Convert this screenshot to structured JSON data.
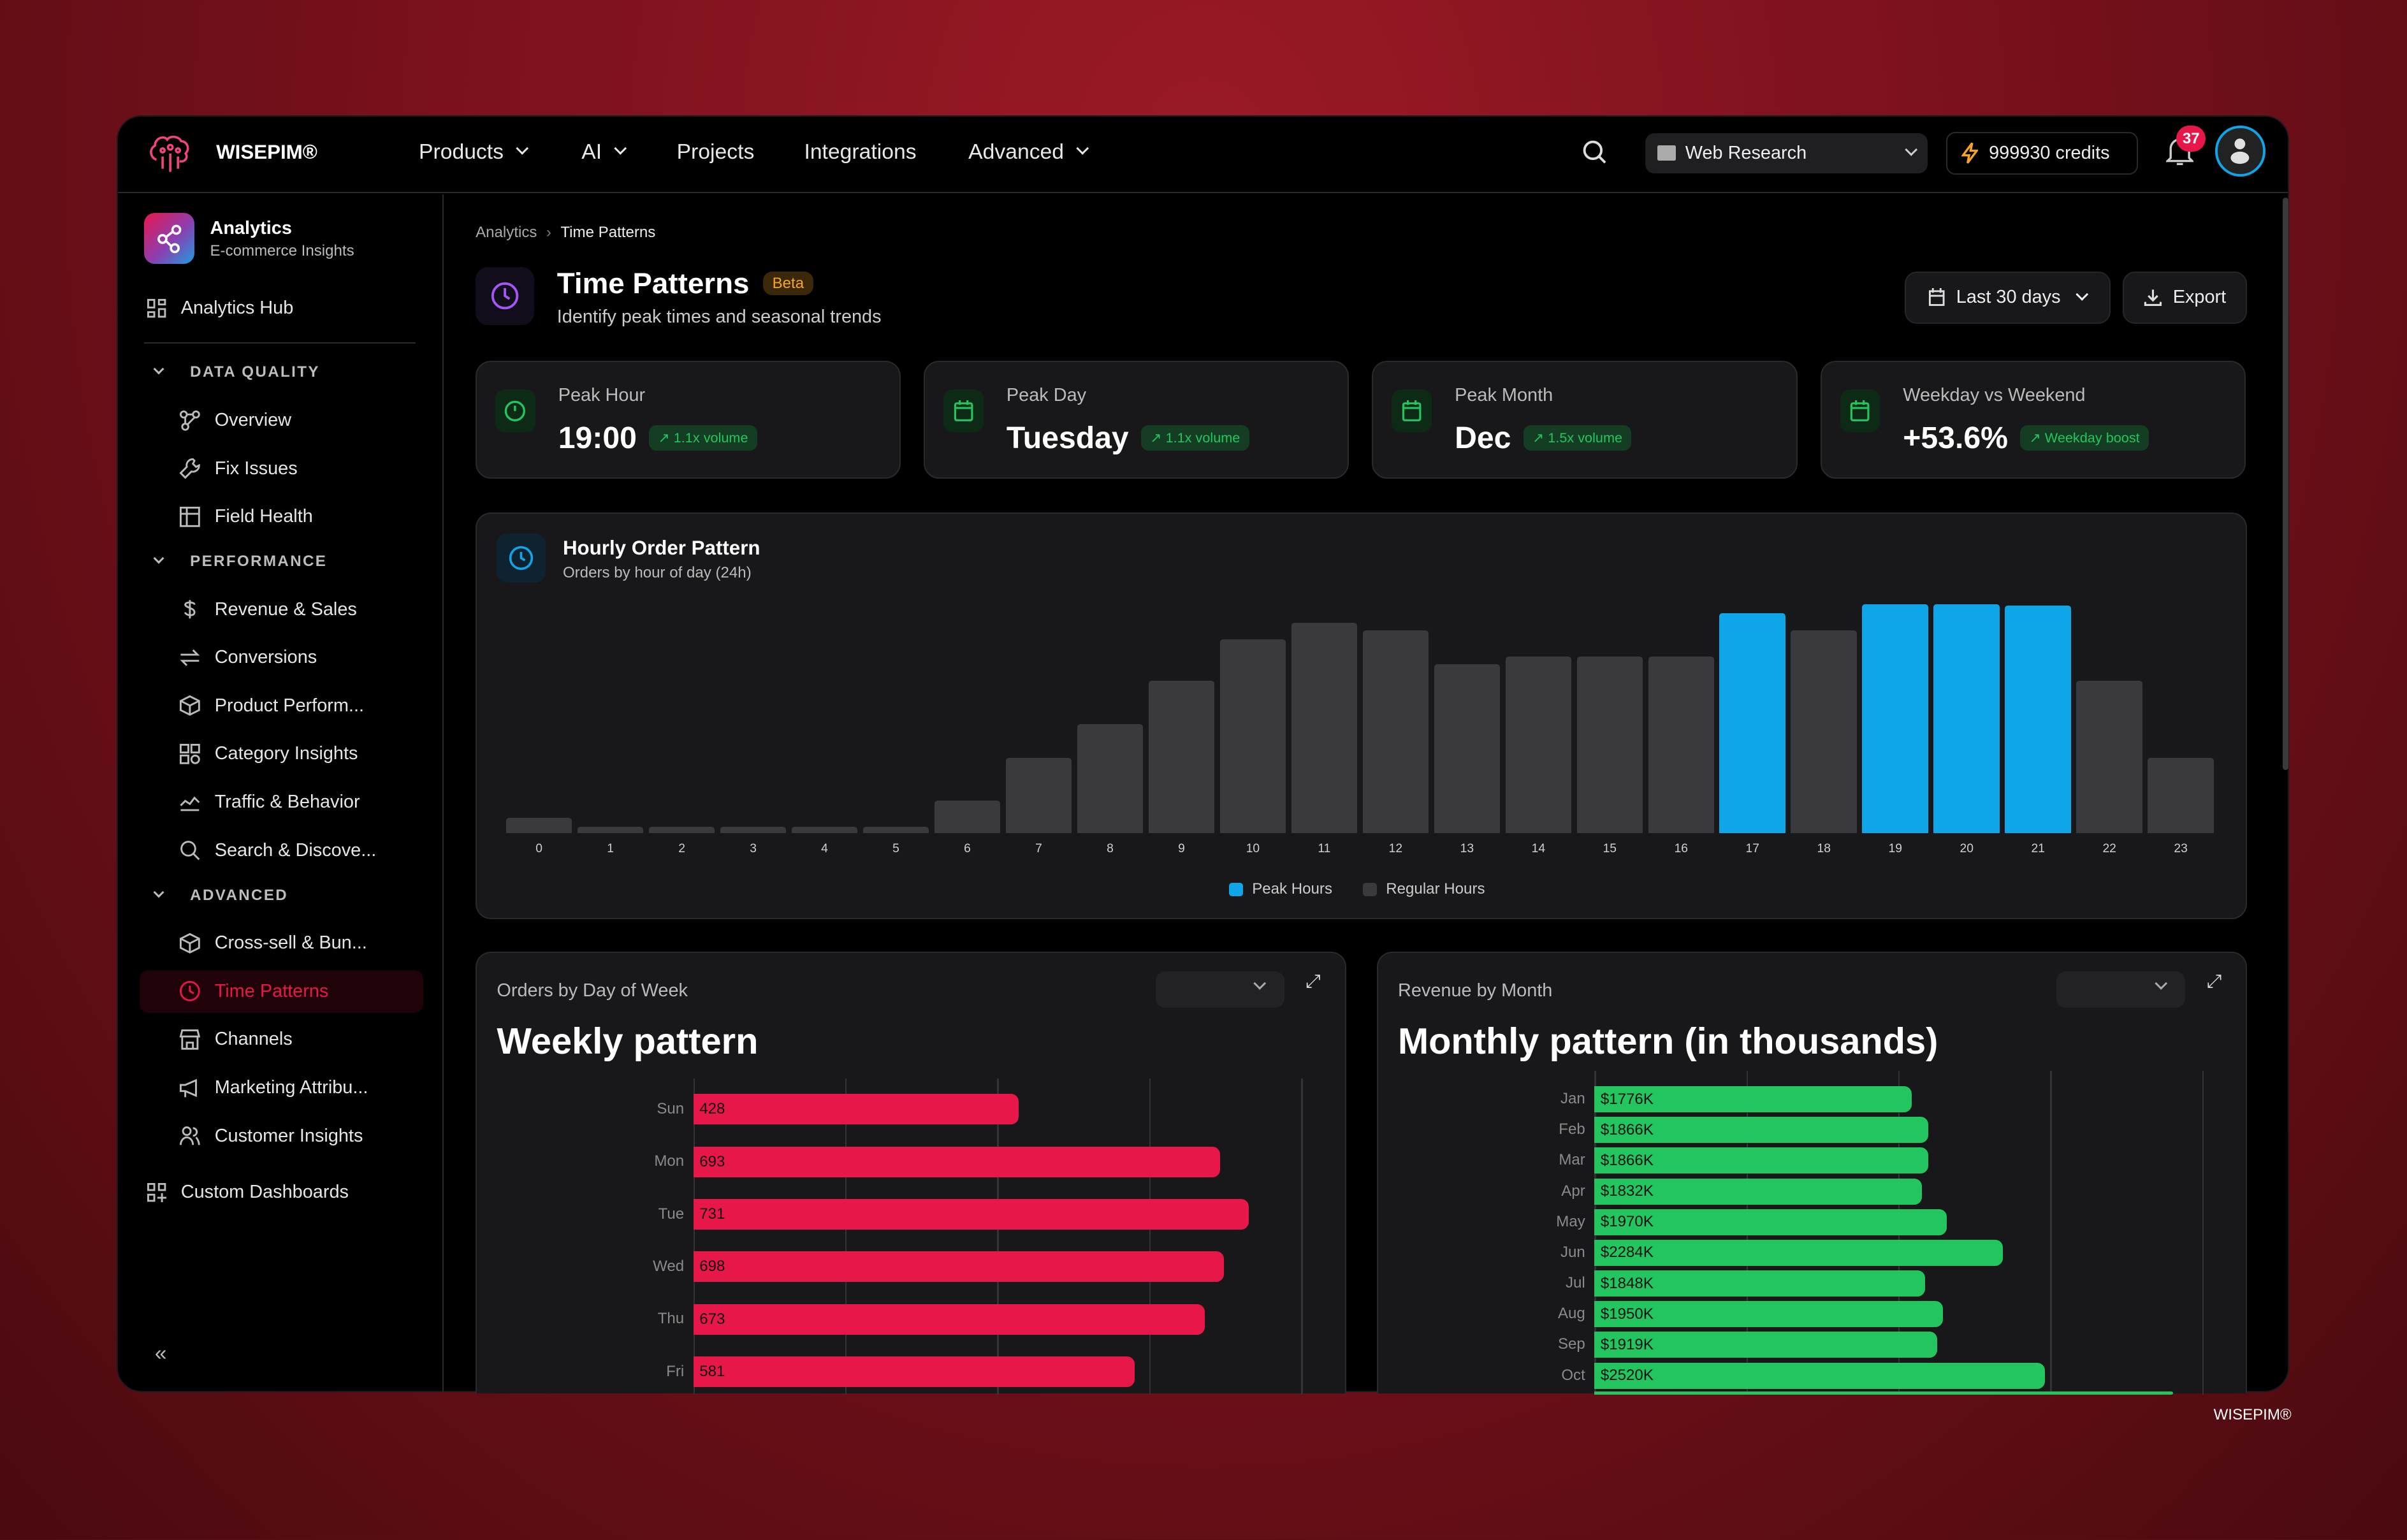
{
  "header": {
    "brand": "WISEPIM®",
    "nav": [
      {
        "label": "Products",
        "dropdown": true
      },
      {
        "label": "AI",
        "dropdown": true
      },
      {
        "label": "Projects"
      },
      {
        "label": "Integrations"
      },
      {
        "label": "Advanced",
        "dropdown": true
      }
    ],
    "workspace": "Web Research",
    "credits": "999930 credits",
    "notifications": "37",
    "accent": "#0ea5e9"
  },
  "sidebar": {
    "app_title": "Analytics",
    "app_subtitle": "E-commerce Insights",
    "hub": "Analytics Hub",
    "sections": [
      {
        "title": "DATA QUALITY",
        "items": [
          {
            "label": "Overview",
            "icon": "nodes-icon"
          },
          {
            "label": "Fix Issues",
            "icon": "wrench-icon"
          },
          {
            "label": "Field Health",
            "icon": "table-icon"
          }
        ]
      },
      {
        "title": "PERFORMANCE",
        "items": [
          {
            "label": "Revenue & Sales",
            "icon": "dollar-icon"
          },
          {
            "label": "Conversions",
            "icon": "arrows-icon"
          },
          {
            "label": "Product Perform...",
            "icon": "box-icon"
          },
          {
            "label": "Category Insights",
            "icon": "grid-icon"
          },
          {
            "label": "Traffic & Behavior",
            "icon": "chart-line-icon"
          },
          {
            "label": "Search & Discove...",
            "icon": "search-icon"
          }
        ]
      },
      {
        "title": "ADVANCED",
        "items": [
          {
            "label": "Cross-sell & Bun...",
            "icon": "box-icon"
          },
          {
            "label": "Time Patterns",
            "icon": "clock-icon",
            "active": true
          },
          {
            "label": "Channels",
            "icon": "store-icon"
          },
          {
            "label": "Marketing Attribu...",
            "icon": "megaphone-icon"
          },
          {
            "label": "Customer Insights",
            "icon": "users-icon"
          }
        ]
      }
    ],
    "custom": "Custom Dashboards",
    "active_color": "#e8174a"
  },
  "breadcrumb": [
    "Analytics",
    "Time Patterns"
  ],
  "page": {
    "title": "Time Patterns",
    "badge": "Beta",
    "subtitle": "Identify peak times and seasonal trends",
    "range": "Last 30 days",
    "export": "Export"
  },
  "stats": [
    {
      "label": "Peak Hour",
      "value": "19:00",
      "badge": "1.1x volume",
      "icon": "clock-icon"
    },
    {
      "label": "Peak Day",
      "value": "Tuesday",
      "badge": "1.1x volume",
      "icon": "calendar-icon"
    },
    {
      "label": "Peak Month",
      "value": "Dec",
      "badge": "1.5x volume",
      "icon": "calendar-icon"
    },
    {
      "label": "Weekday vs Weekend",
      "value": "+53.6%",
      "badge": "Weekday boost",
      "icon": "calendar-icon"
    }
  ],
  "hourly": {
    "title": "Hourly Order Pattern",
    "subtitle": "Orders by hour of day (24h)",
    "legend": [
      "Peak Hours",
      "Regular Hours"
    ]
  },
  "weekly": {
    "label": "Orders by Day of Week",
    "title": "Weekly pattern"
  },
  "monthly": {
    "label": "Revenue by Month",
    "title": "Monthly pattern (in thousands)"
  },
  "footer": "WISEPIM®",
  "chart_data": [
    {
      "type": "bar",
      "title": "Hourly Order Pattern",
      "categories": [
        "0",
        "1",
        "2",
        "3",
        "4",
        "5",
        "6",
        "7",
        "8",
        "9",
        "10",
        "11",
        "12",
        "13",
        "14",
        "15",
        "16",
        "17",
        "18",
        "19",
        "20",
        "21",
        "22",
        "23"
      ],
      "values": [
        10,
        4,
        4,
        4,
        4,
        4,
        21,
        49,
        71,
        99,
        126,
        137,
        132,
        110,
        115,
        115,
        115,
        143,
        132,
        149,
        149,
        148,
        99,
        49
      ],
      "peak": [
        17,
        19,
        20,
        21
      ],
      "colors": {
        "peak": "#0ea5e9",
        "regular": "#3a3a3e"
      },
      "legend": "bottom",
      "grid": false
    },
    {
      "type": "bar",
      "orientation": "horizontal",
      "title": "Weekly pattern",
      "categories": [
        "Sun",
        "Mon",
        "Tue",
        "Wed",
        "Thu",
        "Fri"
      ],
      "values": [
        428,
        693,
        731,
        698,
        673,
        581
      ],
      "labels": [
        "428",
        "693",
        "731",
        "698",
        "673",
        "581"
      ],
      "xlim": [
        0,
        800
      ],
      "color": "#e8174a",
      "grid": true
    },
    {
      "type": "bar",
      "orientation": "horizontal",
      "title": "Monthly pattern (in thousands)",
      "categories": [
        "Jan",
        "Feb",
        "Mar",
        "Apr",
        "May",
        "Jun",
        "Jul",
        "Aug",
        "Sep",
        "Oct"
      ],
      "values": [
        1776,
        1866,
        1866,
        1832,
        1970,
        2284,
        1848,
        1950,
        1919,
        2520
      ],
      "labels": [
        "$1776K",
        "$1866K",
        "$1866K",
        "$1832K",
        "$1970K",
        "$2284K",
        "$1848K",
        "$1950K",
        "$1919K",
        "$2520K"
      ],
      "xlim": [
        0,
        3400
      ],
      "color": "#22c55e",
      "grid": true
    }
  ]
}
